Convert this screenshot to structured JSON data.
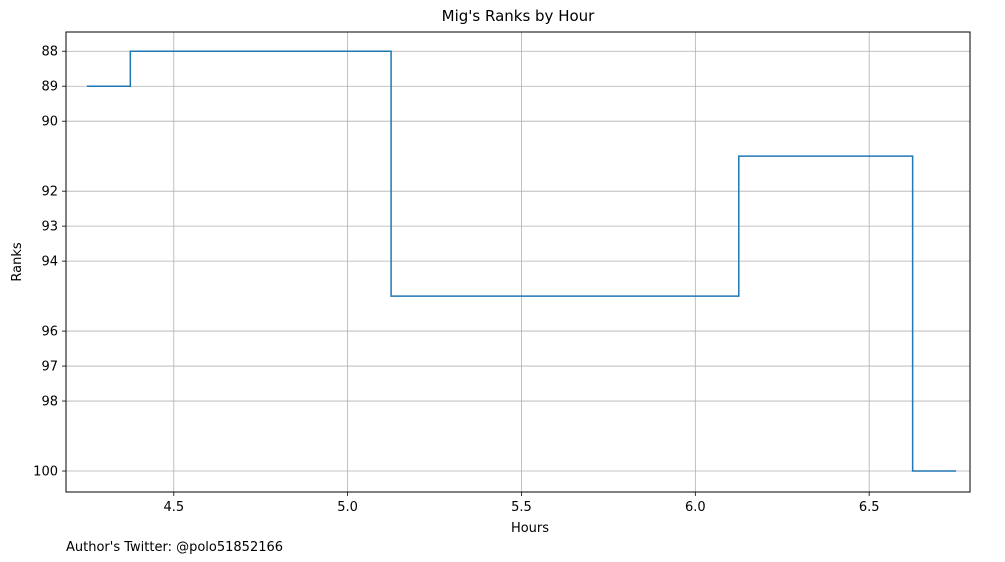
{
  "chart_data": {
    "type": "line",
    "drawstyle": "steps-post",
    "title": "Mig's Ranks by Hour",
    "xlabel": "Hours",
    "ylabel": "Ranks",
    "xlim": [
      4.19,
      6.79
    ],
    "ylim": [
      100.6,
      87.45
    ],
    "y_inverted": true,
    "xticks": [
      "4.5",
      "5.0",
      "5.5",
      "6.0",
      "6.5"
    ],
    "yticks": [
      "88",
      "89",
      "90",
      "92",
      "93",
      "94",
      "96",
      "97",
      "98",
      "100"
    ],
    "grid": true,
    "series": [
      {
        "color": "#1f77b4",
        "x": [
          4.25,
          4.375,
          5.125,
          6.125,
          6.625,
          6.75
        ],
        "y": [
          89,
          88,
          95,
          91,
          100,
          100
        ]
      }
    ]
  },
  "footer": {
    "text": "Author's Twitter: @polo51852166"
  }
}
